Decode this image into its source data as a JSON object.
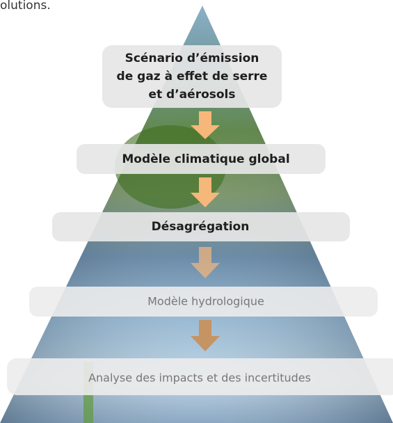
{
  "header": {
    "fragment": "olutions."
  },
  "nodes": [
    {
      "lines": [
        "Scénario d’émission",
        "de gaz à effet de serre",
        "et d’aérosols"
      ]
    },
    {
      "label": "Modèle climatique global"
    },
    {
      "label": "Désagrégation"
    },
    {
      "label": "Modèle hydrologique"
    },
    {
      "label": "Analyse des impacts et des incertitudes"
    }
  ]
}
